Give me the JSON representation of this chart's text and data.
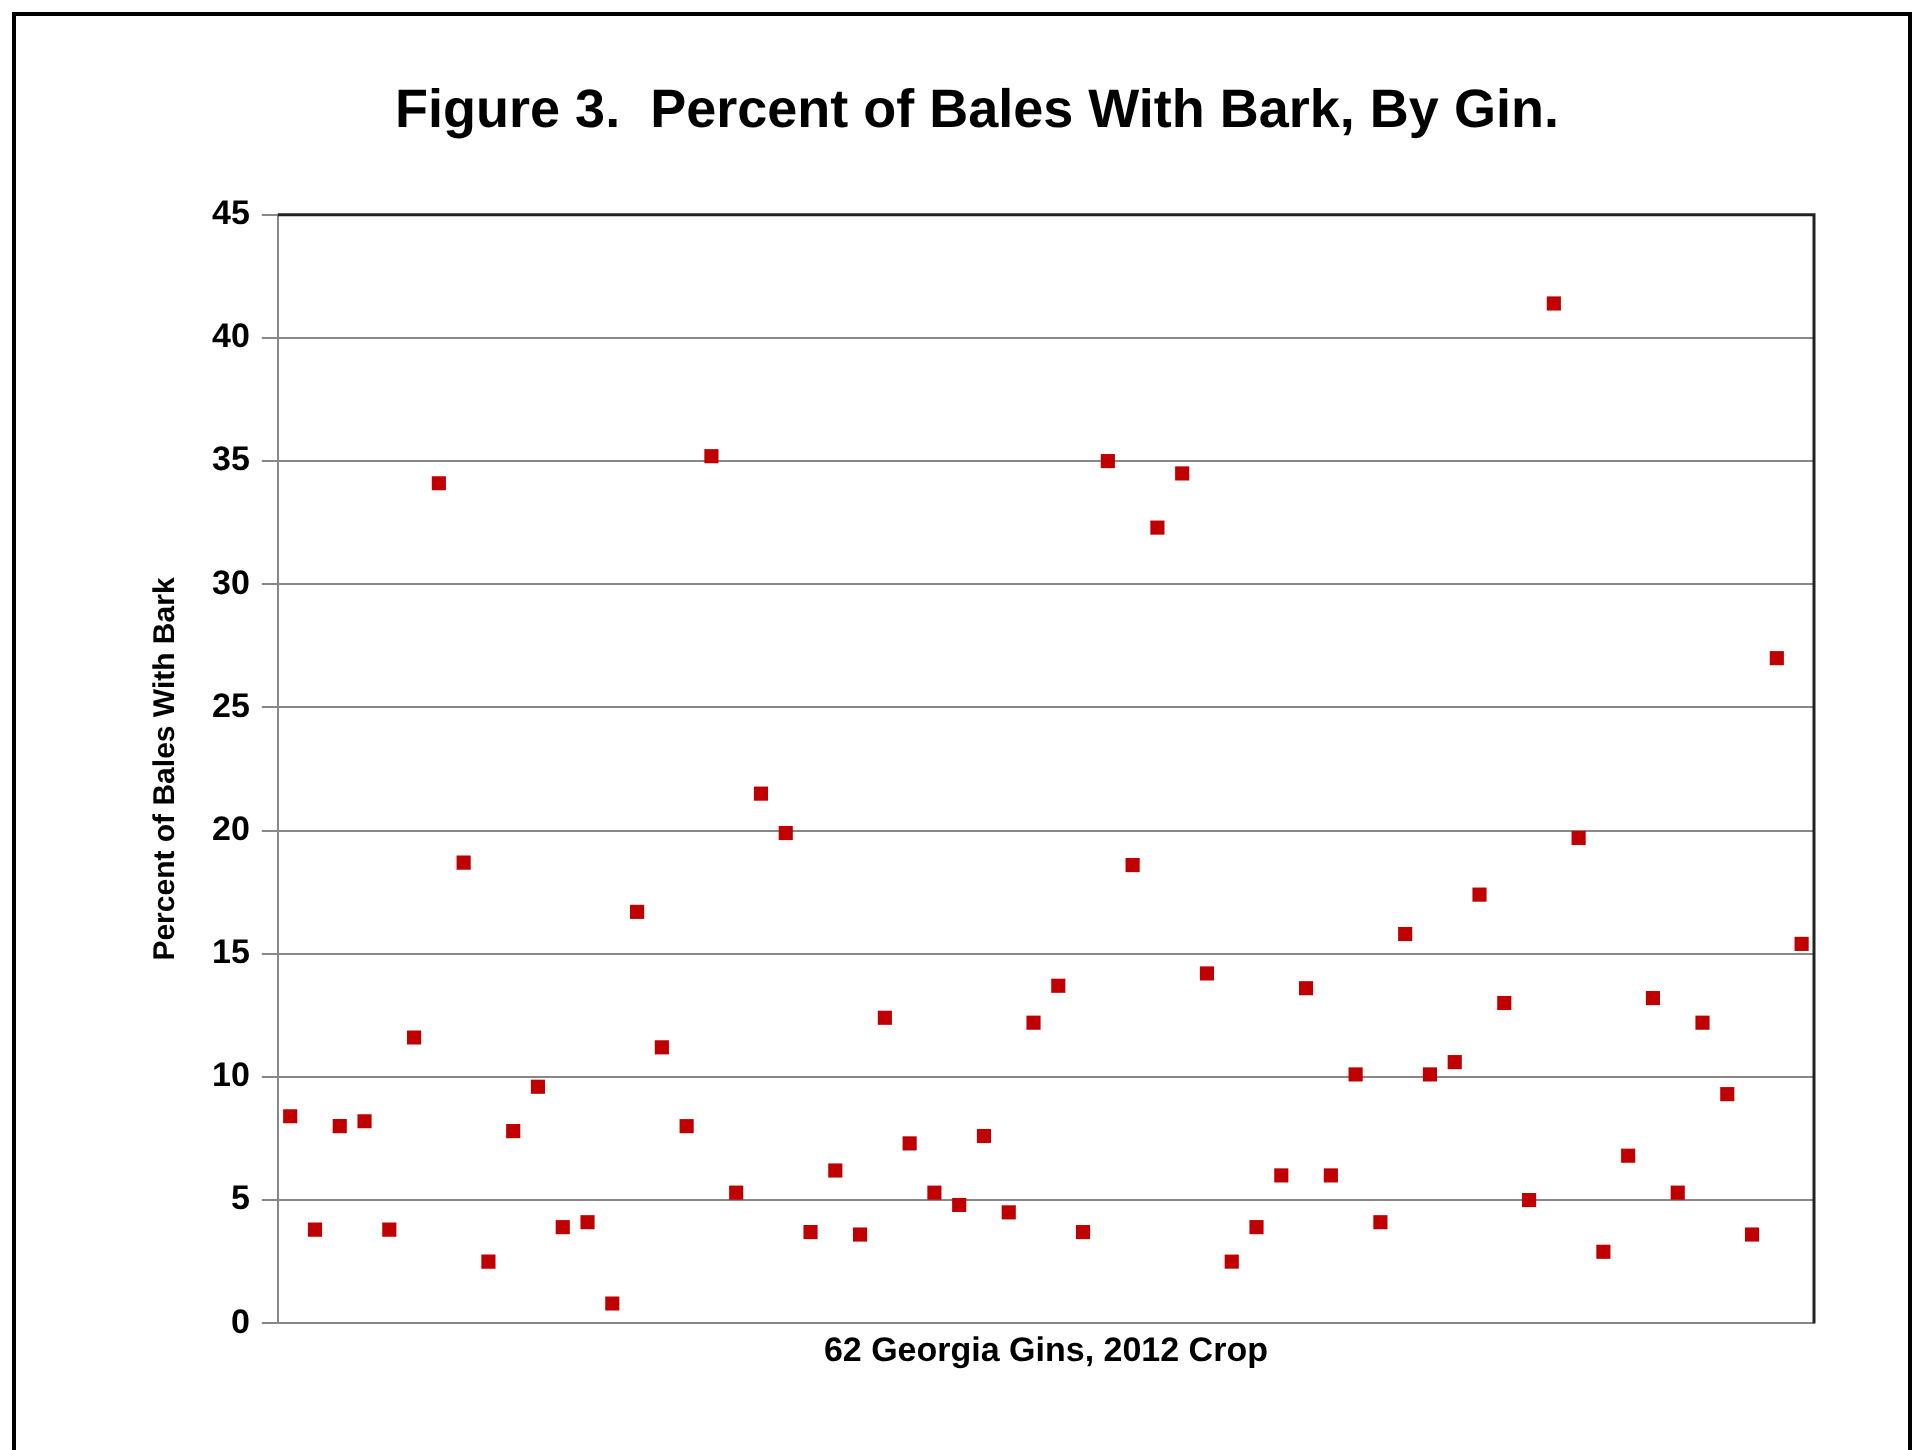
{
  "chart_data": {
    "type": "scatter",
    "title": "Figure 3.  Percent of Bales With Bark, By Gin.",
    "xlabel": "62 Georgia Gins, 2012 Crop",
    "ylabel": "Percent of Bales With Bark",
    "categories": [
      null,
      null,
      null,
      null,
      null,
      null,
      null,
      null,
      null,
      null,
      null,
      null,
      null,
      null,
      null,
      null,
      null,
      null,
      null,
      null,
      null,
      null,
      null,
      null,
      null,
      null,
      null,
      null,
      null,
      null,
      null,
      null,
      null,
      null,
      null,
      null,
      null,
      null,
      null,
      null,
      null,
      null,
      null,
      null,
      null,
      null,
      null,
      null,
      null,
      null,
      null,
      null,
      null,
      null,
      null,
      null,
      null,
      null,
      null,
      null,
      null,
      null
    ],
    "values": [
      8.4,
      3.8,
      8.0,
      8.2,
      3.8,
      11.6,
      34.1,
      18.7,
      2.5,
      7.8,
      9.6,
      3.9,
      4.1,
      0.8,
      16.7,
      11.2,
      8.0,
      35.2,
      5.3,
      21.5,
      19.9,
      3.7,
      6.2,
      3.6,
      12.4,
      7.3,
      5.3,
      4.8,
      7.6,
      4.5,
      12.2,
      13.7,
      3.7,
      35.0,
      18.6,
      32.3,
      34.5,
      14.2,
      2.5,
      3.9,
      6.0,
      13.6,
      6.0,
      10.1,
      4.1,
      15.8,
      10.1,
      10.6,
      17.4,
      13.0,
      5.0,
      41.4,
      19.7,
      2.9,
      6.8,
      13.2,
      5.3,
      12.2,
      9.3,
      3.6,
      27.0,
      15.4
    ],
    "color": "#c00000",
    "ylim": [
      0,
      45
    ],
    "yticks": [
      0,
      5,
      10,
      15,
      20,
      25,
      30,
      35,
      40,
      45
    ],
    "grid": "y",
    "marker": "square",
    "legend": false,
    "tick_labels": "y"
  }
}
